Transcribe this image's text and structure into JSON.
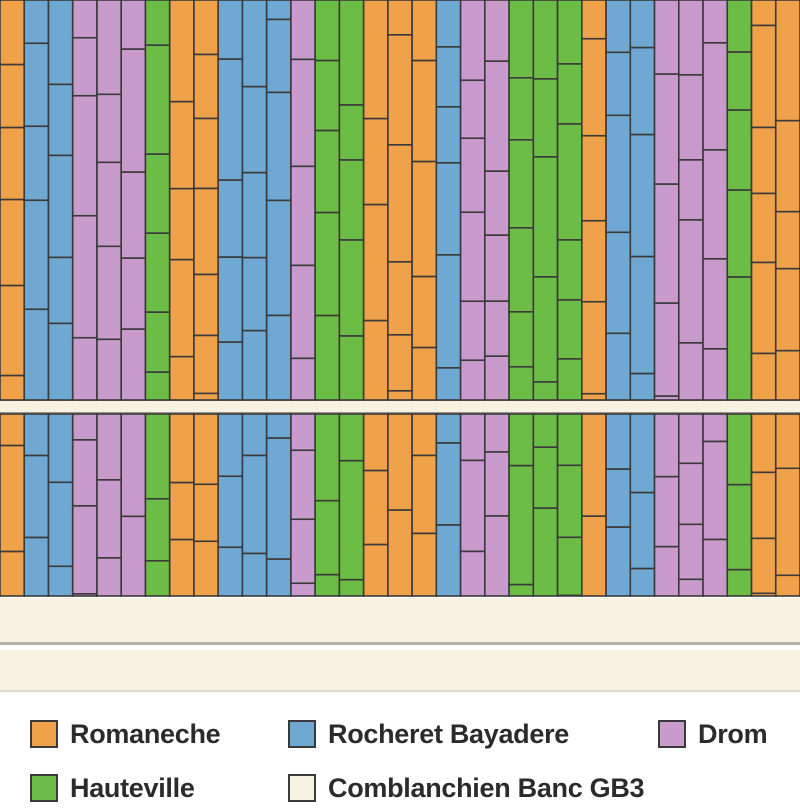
{
  "legend": {
    "romaneche": {
      "label": "Romaneche",
      "color": "#f0a24a"
    },
    "rocheret": {
      "label": "Rocheret Bayadere",
      "color": "#6fa8d2"
    },
    "drom": {
      "label": "Drom",
      "color": "#c99bcc"
    },
    "hauteville": {
      "label": "Hauteville",
      "color": "#6cbd45"
    },
    "comblanchien": {
      "label": "Comblanchien Banc GB3",
      "color": "#f8f2e2"
    }
  },
  "pattern": {
    "column_sequence": [
      "romaneche",
      "rocheret",
      "rocheret",
      "drom",
      "drom",
      "drom",
      "hauteville",
      "romaneche",
      "romaneche",
      "rocheret",
      "rocheret",
      "rocheret",
      "drom",
      "hauteville",
      "hauteville",
      "romaneche",
      "romaneche",
      "romaneche",
      "rocheret",
      "drom",
      "drom",
      "hauteville",
      "hauteville",
      "hauteville",
      "romaneche",
      "rocheret",
      "rocheret",
      "drom",
      "drom",
      "drom",
      "hauteville",
      "romaneche",
      "romaneche"
    ],
    "joint_color": "#3a3a3a",
    "border_color": "#f8f2e2"
  }
}
